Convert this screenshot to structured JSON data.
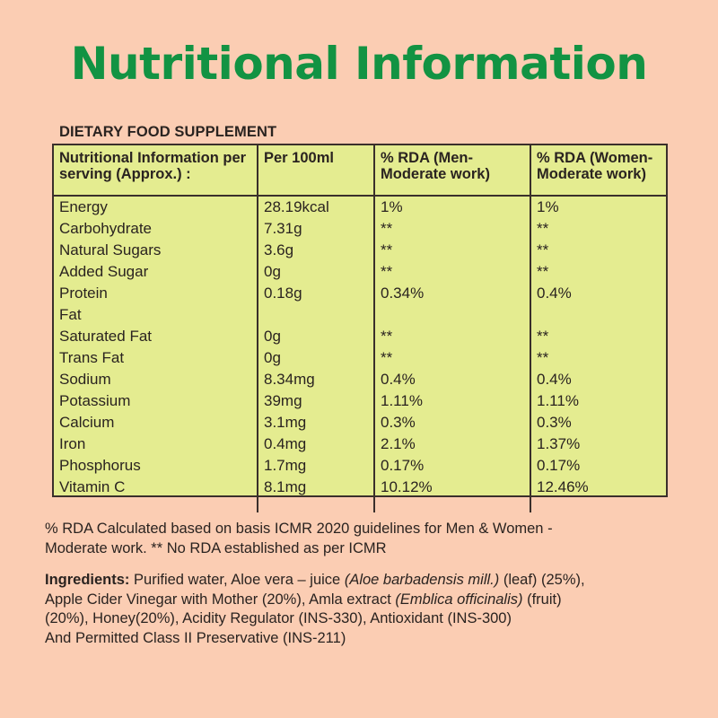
{
  "title": "Nutritional Information",
  "subtitle": "DIETARY FOOD SUPPLEMENT",
  "table": {
    "headers": [
      "Nutritional Information per serving  (Approx.) :",
      "Per 100ml",
      "% RDA (Men- Moderate work)",
      "% RDA (Women- Moderate work)"
    ],
    "rows": [
      {
        "name": "Energy",
        "per100": "28.19kcal",
        "men": "1%",
        "women": "1%"
      },
      {
        "name": "Carbohydrate",
        "per100": "7.31g",
        "men": "**",
        "women": "**"
      },
      {
        "name": "Natural Sugars",
        "per100": "3.6g",
        "men": "**",
        "women": "**"
      },
      {
        "name": "Added Sugar",
        "per100": "0g",
        "men": "**",
        "women": "**"
      },
      {
        "name": "Protein",
        "per100": "0.18g",
        "men": "0.34%",
        "women": "0.4%"
      },
      {
        "name": "Fat",
        "per100": "",
        "men": "",
        "women": ""
      },
      {
        "name": "Saturated Fat",
        "per100": "0g",
        "men": "**",
        "women": "**"
      },
      {
        "name": "Trans Fat",
        "per100": "0g",
        "men": "**",
        "women": "**"
      },
      {
        "name": "Sodium",
        "per100": "8.34mg",
        "men": "0.4%",
        "women": "0.4%"
      },
      {
        "name": "Potassium",
        "per100": "39mg",
        "men": "1.11%",
        "women": "1.11%"
      },
      {
        "name": "Calcium",
        "per100": "3.1mg",
        "men": "0.3%",
        "women": "0.3%"
      },
      {
        "name": "Iron",
        "per100": "0.4mg",
        "men": "2.1%",
        "women": "1.37%"
      },
      {
        "name": "Phosphorus",
        "per100": "1.7mg",
        "men": "0.17%",
        "women": "0.17%"
      },
      {
        "name": "Vitamin C",
        "per100": "8.1mg",
        "men": "10.12%",
        "women": "12.46%"
      }
    ]
  },
  "notes": {
    "line1": "% RDA Calculated based on basis ICMR 2020 guidelines for Men & Women -",
    "line2": "Moderate work. ** No RDA established as per ICMR"
  },
  "ingredients": {
    "label": "Ingredients:",
    "p1": " Purified water, Aloe vera – juice ",
    "i1": "(Aloe barbadensis mill.)",
    "p2": " (leaf) (25%),",
    "line2a": "Apple Cider Vinegar with Mother (20%), Amla extract ",
    "i2": "(Emblica officinalis)",
    "p3": " (fruit)",
    "line3": "(20%), Honey(20%), Acidity Regulator (INS-330), Antioxidant (INS-300)",
    "line4": "And Permitted Class II Preservative (INS-211)"
  }
}
